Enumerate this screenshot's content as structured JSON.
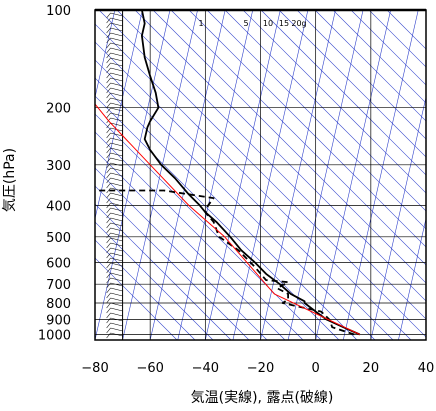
{
  "chart_data": {
    "type": "line",
    "title": "",
    "xlabel": "気温(実線), 露点(破線)",
    "ylabel": "気圧(hPa)",
    "xlim": [
      -80,
      40
    ],
    "ylim": [
      1040,
      100
    ],
    "yscale": "log",
    "x_ticks": [
      -80,
      -60,
      -40,
      -20,
      0,
      20,
      40
    ],
    "y_ticks": [
      100,
      200,
      300,
      400,
      500,
      600,
      700,
      800,
      900,
      1000
    ],
    "mixing_ratio_labels": [
      "1",
      "5",
      "10",
      "15",
      "20g"
    ],
    "mixing_ratio_values": [
      1,
      5,
      10,
      15,
      20
    ],
    "colors": {
      "temperature": "#000000",
      "dewpoint": "#000000",
      "parcel": "#ff0000",
      "isotherms": "#3344cc",
      "dry_adiabats": "#3344cc",
      "grid": "#000000"
    },
    "series": [
      {
        "name": "",
        "role": "temperature",
        "style": "solid",
        "points": [
          [
            16,
            1000
          ],
          [
            10,
            950
          ],
          [
            4,
            900
          ],
          [
            0,
            850
          ],
          [
            -4,
            800
          ],
          [
            -4,
            790
          ],
          [
            -9,
            750
          ],
          [
            -13,
            700
          ],
          [
            -18,
            650
          ],
          [
            -22,
            600
          ],
          [
            -27,
            550
          ],
          [
            -31,
            500
          ],
          [
            -36,
            450
          ],
          [
            -40,
            420
          ],
          [
            -42,
            400
          ],
          [
            -46,
            370
          ],
          [
            -51,
            330
          ],
          [
            -56,
            300
          ],
          [
            -60,
            270
          ],
          [
            -62,
            250
          ],
          [
            -61,
            230
          ],
          [
            -60,
            220
          ],
          [
            -57,
            200
          ],
          [
            -58,
            180
          ],
          [
            -60,
            160
          ],
          [
            -62,
            140
          ],
          [
            -63,
            120
          ],
          [
            -62,
            110
          ],
          [
            -63,
            100
          ]
        ]
      },
      {
        "name": "",
        "role": "dewpoint",
        "style": "dashed",
        "points": [
          [
            14,
            1000
          ],
          [
            6,
            950
          ],
          [
            5,
            900
          ],
          [
            2,
            850
          ],
          [
            -12,
            800
          ],
          [
            -10,
            780
          ],
          [
            -10,
            750
          ],
          [
            -14,
            720
          ],
          [
            -10,
            690
          ],
          [
            -18,
            680
          ],
          [
            -22,
            620
          ],
          [
            -28,
            550
          ],
          [
            -35,
            500
          ],
          [
            -37,
            450
          ],
          [
            -40,
            420
          ],
          [
            -39,
            400
          ],
          [
            -37,
            380
          ],
          [
            -55,
            360
          ],
          [
            -75,
            360
          ],
          [
            -80,
            360
          ]
        ]
      },
      {
        "name": "",
        "role": "parcel",
        "style": "solid",
        "points": [
          [
            16,
            1000
          ],
          [
            -15,
            750
          ],
          [
            -33,
            500
          ],
          [
            -46,
            400
          ],
          [
            -60,
            300
          ],
          [
            -75,
            220
          ],
          [
            -80,
            195
          ]
        ]
      }
    ]
  }
}
